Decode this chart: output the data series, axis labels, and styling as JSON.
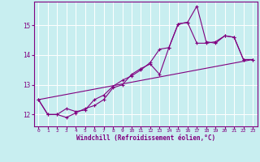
{
  "xlabel": "Windchill (Refroidissement éolien,°C)",
  "background_color": "#c8eef0",
  "line_color": "#800080",
  "grid_color": "#ffffff",
  "xlim": [
    -0.5,
    23.5
  ],
  "ylim": [
    11.6,
    15.8
  ],
  "yticks": [
    12,
    13,
    14,
    15
  ],
  "xticks": [
    0,
    1,
    2,
    3,
    4,
    5,
    6,
    7,
    8,
    9,
    10,
    11,
    12,
    13,
    14,
    15,
    16,
    17,
    18,
    19,
    20,
    21,
    22,
    23
  ],
  "line1_x": [
    0,
    1,
    2,
    3,
    4,
    5,
    6,
    7,
    8,
    9,
    10,
    11,
    12,
    13,
    14,
    15,
    16,
    17,
    18,
    19,
    20,
    21,
    22,
    23
  ],
  "line1_y": [
    12.5,
    12.0,
    12.0,
    11.9,
    12.05,
    12.2,
    12.3,
    12.5,
    12.9,
    13.0,
    13.35,
    13.55,
    13.7,
    13.35,
    14.25,
    15.05,
    15.1,
    15.65,
    14.45,
    14.4,
    14.65,
    14.6,
    13.85,
    13.85
  ],
  "line2_x": [
    0,
    1,
    2,
    3,
    4,
    5,
    6,
    7,
    8,
    9,
    10,
    11,
    12,
    13,
    14,
    15,
    16,
    17,
    18,
    19,
    20,
    21,
    22,
    23
  ],
  "line2_y": [
    12.5,
    12.0,
    12.0,
    12.2,
    12.1,
    12.15,
    12.5,
    12.65,
    12.95,
    13.15,
    13.3,
    13.5,
    13.75,
    14.2,
    14.25,
    15.05,
    15.1,
    14.4,
    14.4,
    14.45,
    14.65,
    14.6,
    13.85,
    13.85
  ],
  "line3_x": [
    0,
    23
  ],
  "line3_y": [
    12.5,
    13.85
  ]
}
